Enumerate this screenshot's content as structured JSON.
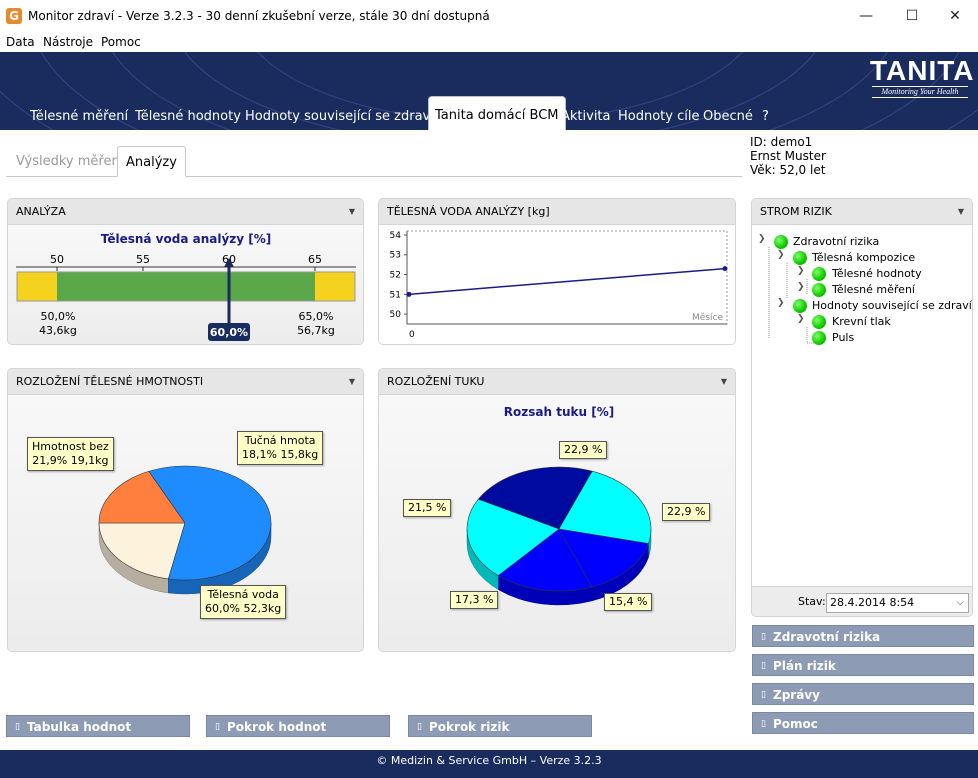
{
  "window": {
    "title": "Monitor zdraví - Verze 3.2.3 - 30 denní zkušební verze, stále 30 dní dostupná",
    "icon_letter": "G",
    "minimize": "—",
    "maximize": "☐",
    "close": "✕"
  },
  "menu": [
    "Data",
    "Nástroje",
    "Pomoc"
  ],
  "logo": {
    "name": "TANITA",
    "tagline": "Monitoring Your Health"
  },
  "nav_tabs": [
    {
      "label": "Tělesné měření"
    },
    {
      "label": "Tělesné hodnoty"
    },
    {
      "label": "Hodnoty související se zdravím"
    },
    {
      "label": "Tanita domácí BCM",
      "active": true
    },
    {
      "label": "Aktivita"
    },
    {
      "label": "Hodnoty cíle"
    },
    {
      "label": "Obecné"
    },
    {
      "label": "?"
    }
  ],
  "sub_tabs": [
    {
      "label": "Výsledky měření"
    },
    {
      "label": "Analýzy",
      "active": true
    }
  ],
  "user": {
    "id": "ID: demo1",
    "name": "Ernst Muster",
    "age": "Věk: 52,0 let"
  },
  "panels": {
    "analyza": {
      "header": "ANALÝZA",
      "chart_title": "Tělesná voda analýzy [%]",
      "ticks": [
        "50",
        "55",
        "60",
        "65"
      ],
      "marker_label": "60,0%",
      "left_label_pct": "50,0%",
      "left_label_kg": "43,6kg",
      "right_label_pct": "65,0%",
      "right_label_kg": "56,7kg"
    },
    "voda": {
      "header": "TĚLESNÁ VODA ANALÝZY [kg]",
      "x_label": "Měsíce",
      "x_tick": "0",
      "y_ticks": [
        "54",
        "53",
        "52",
        "51",
        "50"
      ]
    },
    "hmotnost": {
      "header": "ROZLOŽENÍ TĚLESNÉ HMOTNOSTI",
      "callouts": {
        "bez_line1": "Hmotnost bez",
        "bez_line2": "21,9% 19,1kg",
        "tuk_line1": "Tučná hmota",
        "tuk_line2": "18,1% 15,8kg",
        "voda_line1": "Tělesná voda",
        "voda_line2": "60,0% 52,3kg"
      }
    },
    "tuk": {
      "header": "ROZLOŽENÍ TUKU",
      "chart_title": "Rozsah tuku [%]",
      "labels": [
        "22,9 %",
        "22,9 %",
        "15,4 %",
        "17,3 %",
        "21,5 %"
      ]
    },
    "strom": {
      "header": "STROM RIZIK",
      "nodes": [
        "Zdravotní rizika",
        "Tělesná kompozice",
        "Tělesné hodnoty",
        "Tělesné měření",
        "Hodnoty související se zdravím",
        "Krevní tlak",
        "Puls"
      ],
      "stav_label": "Stav:",
      "stav_value": "28.4.2014 8:54"
    }
  },
  "side_buttons": [
    "Zdravotní rizika",
    "Plán rizik",
    "Zprávy",
    "Pomoc"
  ],
  "bottom_buttons": [
    "Tabulka hodnot",
    "Pokrok hodnot",
    "Pokrok rizik"
  ],
  "footer": "© Medizin & Service GmbH – Verze 3.2.3",
  "colors": {
    "header_bg": "#1a2c5e",
    "bar_green": "#5aa84a",
    "bar_yellow": "#f5d21e",
    "marker": "#1a2c5e",
    "pie_orange": "#ff7f3f",
    "pie_blue": "#1e8cff",
    "pie_cream": "#fdf2dc",
    "fat_dark": "#000a9e",
    "fat_cyan": "#00ffff",
    "fat_blue": "#0000ff"
  },
  "chart_data": [
    {
      "type": "bar",
      "title": "Tělesná voda analýzy [%]",
      "categories": [
        "Tělesná voda"
      ],
      "values": [
        60.0
      ],
      "xlim": [
        45,
        70
      ],
      "ticks": [
        50,
        55,
        60,
        65
      ],
      "normal_range": [
        50,
        65
      ]
    },
    {
      "type": "line",
      "title": "TĚLESNÁ VODA ANALÝZY [kg]",
      "xlabel": "Měsíce",
      "x": [
        0,
        1
      ],
      "series": [
        {
          "values": [
            51.0,
            52.3
          ]
        }
      ],
      "ylim": [
        49.5,
        54.2
      ]
    },
    {
      "type": "pie",
      "title": "ROZLOŽENÍ TĚLESNÉ HMOTNOSTI",
      "categories": [
        "Hmotnost bez",
        "Tučná hmota",
        "Tělesná voda"
      ],
      "values": [
        21.9,
        18.1,
        60.0
      ]
    },
    {
      "type": "pie",
      "title": "Rozsah tuku [%]",
      "categories": [
        "",
        "",
        "",
        "",
        ""
      ],
      "values": [
        22.9,
        22.9,
        15.4,
        17.3,
        21.5
      ]
    }
  ]
}
